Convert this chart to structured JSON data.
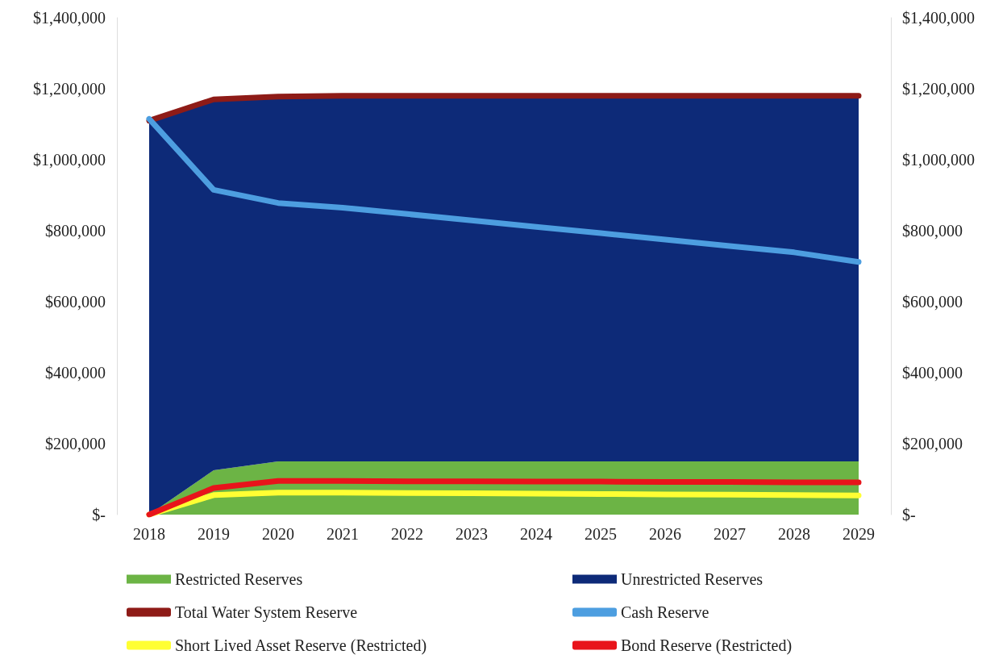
{
  "chart_data": {
    "type": "area",
    "categories": [
      "2018",
      "2019",
      "2020",
      "2021",
      "2022",
      "2023",
      "2024",
      "2025",
      "2026",
      "2027",
      "2028",
      "2029"
    ],
    "stacked": true,
    "series": [
      {
        "name": "Restricted Reserves",
        "type": "area",
        "color": "#6cb445",
        "values": [
          0,
          125000,
          150000,
          150000,
          150000,
          150000,
          150000,
          150000,
          150000,
          150000,
          150000,
          150000
        ]
      },
      {
        "name": "Unrestricted Reserves",
        "type": "area",
        "color": "#0d2a78",
        "values": [
          1110000,
          1045000,
          1028000,
          1030000,
          1030000,
          1030000,
          1030000,
          1030000,
          1030000,
          1030000,
          1030000,
          1030000
        ]
      },
      {
        "name": "Total Water System Reserve",
        "type": "line",
        "color": "#8e1b17",
        "values": [
          1110000,
          1170000,
          1178000,
          1180000,
          1180000,
          1180000,
          1180000,
          1180000,
          1180000,
          1180000,
          1180000,
          1180000
        ]
      },
      {
        "name": "Cash Reserve",
        "type": "line",
        "color": "#4d9ee0",
        "values": [
          1115000,
          915000,
          878000,
          865000,
          847000,
          829000,
          811000,
          793000,
          775000,
          757000,
          739000,
          712000
        ]
      },
      {
        "name": "Short Lived Asset Reserve (Restricted)",
        "type": "line",
        "color": "#ffff33",
        "values": [
          0,
          55000,
          62000,
          62000,
          61000,
          60000,
          59000,
          58000,
          57000,
          56000,
          55000,
          54000
        ]
      },
      {
        "name": "Bond Reserve (Restricted)",
        "type": "line",
        "color": "#e8141b",
        "values": [
          0,
          75000,
          95000,
          95000,
          94000,
          94000,
          93000,
          93000,
          92000,
          92000,
          91000,
          91000
        ]
      }
    ],
    "ylim": [
      0,
      1400000
    ],
    "yticks": [
      {
        "value": 0,
        "label": "$-"
      },
      {
        "value": 200000,
        "label": "$200,000"
      },
      {
        "value": 400000,
        "label": "$400,000"
      },
      {
        "value": 600000,
        "label": "$600,000"
      },
      {
        "value": 800000,
        "label": "$800,000"
      },
      {
        "value": 1000000,
        "label": "$1,000,000"
      },
      {
        "value": 1200000,
        "label": "$1,200,000"
      },
      {
        "value": 1400000,
        "label": "$1,400,000"
      }
    ],
    "y2lim": [
      0,
      1400000
    ],
    "y2ticks": [
      {
        "value": 0,
        "label": "$-"
      },
      {
        "value": 200000,
        "label": "$200,000"
      },
      {
        "value": 400000,
        "label": "$400,000"
      },
      {
        "value": 600000,
        "label": "$600,000"
      },
      {
        "value": 800000,
        "label": "$800,000"
      },
      {
        "value": 1000000,
        "label": "$1,000,000"
      },
      {
        "value": 1200000,
        "label": "$1,200,000"
      },
      {
        "value": 1400000,
        "label": "$1,400,000"
      }
    ],
    "legend": "bottom",
    "marker": "none",
    "line_style": "solid"
  }
}
